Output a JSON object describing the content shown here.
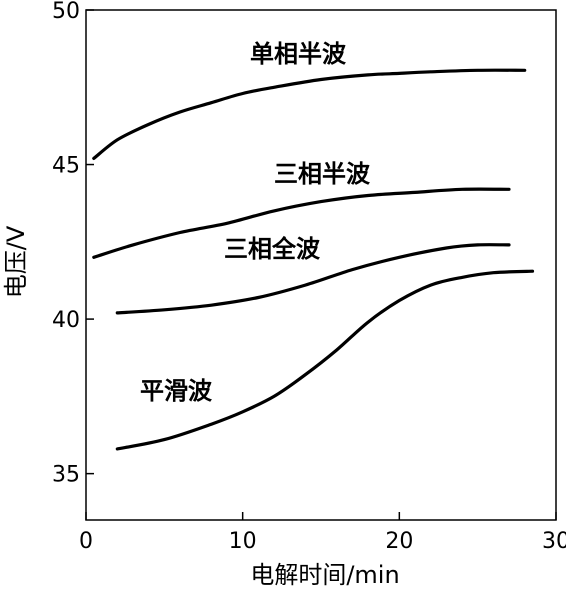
{
  "chart_data": {
    "type": "line",
    "xlabel": "电解时间/min",
    "ylabel": "电压/V",
    "xlim": [
      0,
      30
    ],
    "ylim": [
      33.5,
      50
    ],
    "xticks": [
      0,
      10,
      20,
      30
    ],
    "yticks": [
      35,
      40,
      45,
      50
    ],
    "grid": false,
    "series": [
      {
        "name": "单相半波",
        "x": [
          0.5,
          2,
          4,
          6,
          8,
          10,
          12,
          15,
          18,
          20,
          22,
          25,
          28
        ],
        "y": [
          45.2,
          45.8,
          46.3,
          46.7,
          47.0,
          47.3,
          47.5,
          47.75,
          47.9,
          47.95,
          48.0,
          48.05,
          48.05
        ]
      },
      {
        "name": "三相半波",
        "x": [
          0.5,
          3,
          6,
          9,
          12,
          15,
          18,
          21,
          24,
          27
        ],
        "y": [
          42.0,
          42.4,
          42.8,
          43.1,
          43.5,
          43.8,
          44.0,
          44.1,
          44.2,
          44.2
        ]
      },
      {
        "name": "三相全波",
        "x": [
          2,
          5,
          8,
          11,
          14,
          17,
          20,
          23,
          25,
          27
        ],
        "y": [
          40.2,
          40.3,
          40.45,
          40.7,
          41.1,
          41.6,
          42.0,
          42.3,
          42.4,
          42.4
        ]
      },
      {
        "name": "平滑波",
        "x": [
          2,
          5,
          8,
          10,
          12,
          14,
          16,
          18,
          20,
          22,
          24,
          26,
          28.5
        ],
        "y": [
          35.8,
          36.1,
          36.6,
          37.0,
          37.5,
          38.2,
          39.0,
          39.9,
          40.6,
          41.1,
          41.35,
          41.5,
          41.55
        ]
      }
    ]
  }
}
